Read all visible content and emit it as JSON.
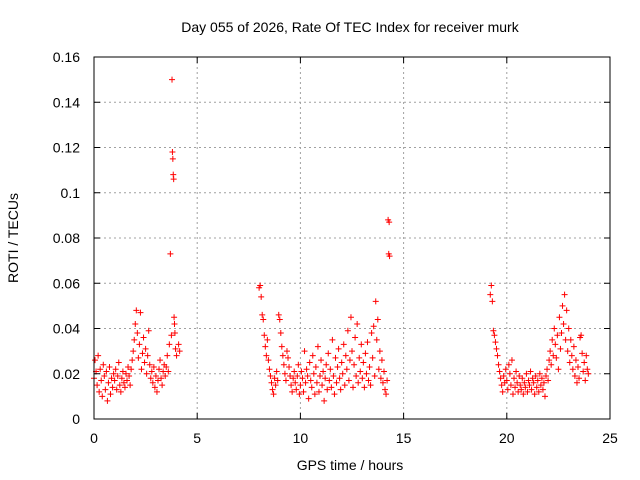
{
  "chart_data": {
    "type": "scatter",
    "title": "Day 055 of 2026, Rate Of TEC Index for receiver murk",
    "xlabel": "GPS time / hours",
    "ylabel": "ROTI / TECUs",
    "xlim": [
      0,
      25
    ],
    "ylim": [
      0,
      0.16
    ],
    "x_ticks": [
      0,
      5,
      10,
      15,
      20,
      25
    ],
    "x_tick_labels": [
      "0",
      "5",
      "10",
      "15",
      "20",
      "25"
    ],
    "y_ticks": [
      0,
      0.02,
      0.04,
      0.06,
      0.08,
      0.1,
      0.12,
      0.14,
      0.16
    ],
    "y_tick_labels": [
      "0",
      "0.02",
      "0.04",
      "0.06",
      "0.08",
      "0.1",
      "0.12",
      "0.14",
      "0.16"
    ],
    "grid": true,
    "marker": "plus",
    "color": "#ff0000",
    "series": [
      {
        "points": [
          [
            0.0,
            0.018
          ],
          [
            0.05,
            0.026
          ],
          [
            0.1,
            0.021
          ],
          [
            0.15,
            0.015
          ],
          [
            0.2,
            0.028
          ],
          [
            0.25,
            0.012
          ],
          [
            0.3,
            0.022
          ],
          [
            0.35,
            0.017
          ],
          [
            0.4,
            0.01
          ],
          [
            0.45,
            0.024
          ],
          [
            0.5,
            0.019
          ],
          [
            0.55,
            0.013
          ],
          [
            0.6,
            0.021
          ],
          [
            0.65,
            0.008
          ],
          [
            0.7,
            0.016
          ],
          [
            0.75,
            0.023
          ],
          [
            0.8,
            0.011
          ],
          [
            0.85,
            0.018
          ],
          [
            0.9,
            0.014
          ],
          [
            0.95,
            0.02
          ],
          [
            1.0,
            0.017
          ],
          [
            1.05,
            0.022
          ],
          [
            1.1,
            0.013
          ],
          [
            1.15,
            0.019
          ],
          [
            1.2,
            0.025
          ],
          [
            1.25,
            0.015
          ],
          [
            1.3,
            0.012
          ],
          [
            1.35,
            0.018
          ],
          [
            1.4,
            0.021
          ],
          [
            1.45,
            0.016
          ],
          [
            1.5,
            0.014
          ],
          [
            1.55,
            0.02
          ],
          [
            1.6,
            0.017
          ],
          [
            1.65,
            0.023
          ],
          [
            1.7,
            0.019
          ],
          [
            1.75,
            0.015
          ],
          [
            1.8,
            0.022
          ],
          [
            1.85,
            0.026
          ],
          [
            1.9,
            0.03
          ],
          [
            1.95,
            0.035
          ],
          [
            2.0,
            0.042
          ],
          [
            2.05,
            0.048
          ],
          [
            2.1,
            0.038
          ],
          [
            2.15,
            0.027
          ],
          [
            2.2,
            0.033
          ],
          [
            2.25,
            0.047
          ],
          [
            2.3,
            0.022
          ],
          [
            2.35,
            0.029
          ],
          [
            2.4,
            0.036
          ],
          [
            2.45,
            0.025
          ],
          [
            2.5,
            0.031
          ],
          [
            2.55,
            0.02
          ],
          [
            2.6,
            0.028
          ],
          [
            2.65,
            0.039
          ],
          [
            2.7,
            0.024
          ],
          [
            2.75,
            0.018
          ],
          [
            2.8,
            0.021
          ],
          [
            2.85,
            0.016
          ],
          [
            2.9,
            0.023
          ],
          [
            2.95,
            0.014
          ],
          [
            3.0,
            0.019
          ],
          [
            3.05,
            0.012
          ],
          [
            3.1,
            0.017
          ],
          [
            3.15,
            0.022
          ],
          [
            3.2,
            0.026
          ],
          [
            3.25,
            0.018
          ],
          [
            3.3,
            0.015
          ],
          [
            3.35,
            0.021
          ],
          [
            3.4,
            0.024
          ],
          [
            3.45,
            0.019
          ],
          [
            3.5,
            0.023
          ],
          [
            3.55,
            0.028
          ],
          [
            3.6,
            0.021
          ],
          [
            3.65,
            0.033
          ],
          [
            3.7,
            0.073
          ],
          [
            3.75,
            0.037
          ],
          [
            3.78,
            0.15
          ],
          [
            3.8,
            0.118
          ],
          [
            3.82,
            0.115
          ],
          [
            3.84,
            0.108
          ],
          [
            3.86,
            0.106
          ],
          [
            3.88,
            0.045
          ],
          [
            3.9,
            0.042
          ],
          [
            3.92,
            0.038
          ],
          [
            3.95,
            0.031
          ],
          [
            4.0,
            0.028
          ],
          [
            4.1,
            0.033
          ],
          [
            4.15,
            0.03
          ],
          [
            8.0,
            0.058
          ],
          [
            8.05,
            0.059
          ],
          [
            8.1,
            0.054
          ],
          [
            8.15,
            0.046
          ],
          [
            8.2,
            0.044
          ],
          [
            8.25,
            0.037
          ],
          [
            8.3,
            0.032
          ],
          [
            8.35,
            0.028
          ],
          [
            8.4,
            0.035
          ],
          [
            8.45,
            0.026
          ],
          [
            8.5,
            0.022
          ],
          [
            8.55,
            0.019
          ],
          [
            8.6,
            0.016
          ],
          [
            8.65,
            0.013
          ],
          [
            8.7,
            0.011
          ],
          [
            8.75,
            0.018
          ],
          [
            8.8,
            0.015
          ],
          [
            8.85,
            0.021
          ],
          [
            8.9,
            0.017
          ],
          [
            8.95,
            0.046
          ],
          [
            9.0,
            0.044
          ],
          [
            9.05,
            0.038
          ],
          [
            9.1,
            0.032
          ],
          [
            9.15,
            0.028
          ],
          [
            9.2,
            0.024
          ],
          [
            9.25,
            0.02
          ],
          [
            9.3,
            0.017
          ],
          [
            9.35,
            0.03
          ],
          [
            9.4,
            0.027
          ],
          [
            9.45,
            0.023
          ],
          [
            9.5,
            0.019
          ],
          [
            9.55,
            0.015
          ],
          [
            9.6,
            0.012
          ],
          [
            9.65,
            0.018
          ],
          [
            9.7,
            0.021
          ],
          [
            9.75,
            0.016
          ],
          [
            9.8,
            0.013
          ],
          [
            9.85,
            0.019
          ],
          [
            9.9,
            0.024
          ],
          [
            9.95,
            0.011
          ],
          [
            10.0,
            0.015
          ],
          [
            10.05,
            0.021
          ],
          [
            10.1,
            0.018
          ],
          [
            10.15,
            0.012
          ],
          [
            10.2,
            0.03
          ],
          [
            10.25,
            0.016
          ],
          [
            10.3,
            0.022
          ],
          [
            10.35,
            0.019
          ],
          [
            10.4,
            0.009
          ],
          [
            10.45,
            0.025
          ],
          [
            10.5,
            0.017
          ],
          [
            10.55,
            0.014
          ],
          [
            10.6,
            0.028
          ],
          [
            10.65,
            0.02
          ],
          [
            10.7,
            0.011
          ],
          [
            10.75,
            0.023
          ],
          [
            10.8,
            0.016
          ],
          [
            10.85,
            0.032
          ],
          [
            10.9,
            0.012
          ],
          [
            10.95,
            0.019
          ],
          [
            11.0,
            0.026
          ],
          [
            11.05,
            0.015
          ],
          [
            11.1,
            0.021
          ],
          [
            11.15,
            0.008
          ],
          [
            11.2,
            0.018
          ],
          [
            11.25,
            0.024
          ],
          [
            11.3,
            0.013
          ],
          [
            11.35,
            0.029
          ],
          [
            11.4,
            0.017
          ],
          [
            11.45,
            0.022
          ],
          [
            11.5,
            0.014
          ],
          [
            11.55,
            0.035
          ],
          [
            11.6,
            0.019
          ],
          [
            11.65,
            0.011
          ],
          [
            11.7,
            0.027
          ],
          [
            11.75,
            0.016
          ],
          [
            11.8,
            0.023
          ],
          [
            11.85,
            0.031
          ],
          [
            11.9,
            0.018
          ],
          [
            11.95,
            0.013
          ],
          [
            12.0,
            0.025
          ],
          [
            12.05,
            0.02
          ],
          [
            12.1,
            0.033
          ],
          [
            12.15,
            0.015
          ],
          [
            12.2,
            0.028
          ],
          [
            12.25,
            0.022
          ],
          [
            12.3,
            0.039
          ],
          [
            12.35,
            0.017
          ],
          [
            12.4,
            0.026
          ],
          [
            12.45,
            0.045
          ],
          [
            12.5,
            0.03
          ],
          [
            12.55,
            0.014
          ],
          [
            12.6,
            0.024
          ],
          [
            12.65,
            0.036
          ],
          [
            12.7,
            0.019
          ],
          [
            12.75,
            0.042
          ],
          [
            12.8,
            0.016
          ],
          [
            12.85,
            0.027
          ],
          [
            12.9,
            0.021
          ],
          [
            12.95,
            0.033
          ],
          [
            13.0,
            0.018
          ],
          [
            13.05,
            0.025
          ],
          [
            13.1,
            0.014
          ],
          [
            13.15,
            0.029
          ],
          [
            13.2,
            0.02
          ],
          [
            13.25,
            0.034
          ],
          [
            13.3,
            0.017
          ],
          [
            13.35,
            0.023
          ],
          [
            13.4,
            0.015
          ],
          [
            13.45,
            0.038
          ],
          [
            13.5,
            0.027
          ],
          [
            13.55,
            0.041
          ],
          [
            13.6,
            0.019
          ],
          [
            13.65,
            0.052
          ],
          [
            13.7,
            0.035
          ],
          [
            13.75,
            0.044
          ],
          [
            13.8,
            0.022
          ],
          [
            13.85,
            0.03
          ],
          [
            13.9,
            0.018
          ],
          [
            13.95,
            0.026
          ],
          [
            14.0,
            0.016
          ],
          [
            14.05,
            0.021
          ],
          [
            14.1,
            0.013
          ],
          [
            14.15,
            0.011
          ],
          [
            14.2,
            0.017
          ],
          [
            14.25,
            0.088
          ],
          [
            14.3,
            0.087
          ],
          [
            14.28,
            0.073
          ],
          [
            14.32,
            0.072
          ],
          [
            19.2,
            0.055
          ],
          [
            19.25,
            0.059
          ],
          [
            19.3,
            0.052
          ],
          [
            19.35,
            0.039
          ],
          [
            19.4,
            0.037
          ],
          [
            19.45,
            0.034
          ],
          [
            19.5,
            0.031
          ],
          [
            19.55,
            0.028
          ],
          [
            19.6,
            0.024
          ],
          [
            19.65,
            0.021
          ],
          [
            19.7,
            0.018
          ],
          [
            19.75,
            0.015
          ],
          [
            19.8,
            0.012
          ],
          [
            19.85,
            0.019
          ],
          [
            19.9,
            0.016
          ],
          [
            19.95,
            0.022
          ],
          [
            20.0,
            0.017
          ],
          [
            20.05,
            0.013
          ],
          [
            20.1,
            0.024
          ],
          [
            20.15,
            0.02
          ],
          [
            20.2,
            0.015
          ],
          [
            20.25,
            0.026
          ],
          [
            20.3,
            0.011
          ],
          [
            20.35,
            0.018
          ],
          [
            20.4,
            0.014
          ],
          [
            20.45,
            0.021
          ],
          [
            20.5,
            0.016
          ],
          [
            20.55,
            0.012
          ],
          [
            20.6,
            0.019
          ],
          [
            20.65,
            0.015
          ],
          [
            20.7,
            0.013
          ],
          [
            20.75,
            0.018
          ],
          [
            20.8,
            0.011
          ],
          [
            20.85,
            0.016
          ],
          [
            20.9,
            0.014
          ],
          [
            20.95,
            0.02
          ],
          [
            21.0,
            0.012
          ],
          [
            21.05,
            0.017
          ],
          [
            21.1,
            0.015
          ],
          [
            21.15,
            0.021
          ],
          [
            21.2,
            0.013
          ],
          [
            21.25,
            0.018
          ],
          [
            21.3,
            0.016
          ],
          [
            21.35,
            0.011
          ],
          [
            21.4,
            0.019
          ],
          [
            21.45,
            0.014
          ],
          [
            21.5,
            0.017
          ],
          [
            21.55,
            0.012
          ],
          [
            21.6,
            0.02
          ],
          [
            21.65,
            0.015
          ],
          [
            21.7,
            0.018
          ],
          [
            21.75,
            0.013
          ],
          [
            21.8,
            0.016
          ],
          [
            21.85,
            0.01
          ],
          [
            21.9,
            0.019
          ],
          [
            21.95,
            0.022
          ],
          [
            22.0,
            0.017
          ],
          [
            22.05,
            0.026
          ],
          [
            22.1,
            0.03
          ],
          [
            22.15,
            0.024
          ],
          [
            22.2,
            0.035
          ],
          [
            22.25,
            0.028
          ],
          [
            22.3,
            0.04
          ],
          [
            22.35,
            0.033
          ],
          [
            22.4,
            0.027
          ],
          [
            22.45,
            0.037
          ],
          [
            22.5,
            0.022
          ],
          [
            22.55,
            0.045
          ],
          [
            22.6,
            0.031
          ],
          [
            22.65,
            0.038
          ],
          [
            22.7,
            0.05
          ],
          [
            22.75,
            0.042
          ],
          [
            22.8,
            0.055
          ],
          [
            22.85,
            0.035
          ],
          [
            22.9,
            0.048
          ],
          [
            22.95,
            0.03
          ],
          [
            23.0,
            0.04
          ],
          [
            23.05,
            0.025
          ],
          [
            23.1,
            0.035
          ],
          [
            23.15,
            0.028
          ],
          [
            23.2,
            0.022
          ],
          [
            23.25,
            0.032
          ],
          [
            23.3,
            0.019
          ],
          [
            23.35,
            0.026
          ],
          [
            23.4,
            0.016
          ],
          [
            23.45,
            0.023
          ],
          [
            23.5,
            0.018
          ],
          [
            23.55,
            0.036
          ],
          [
            23.6,
            0.037
          ],
          [
            23.65,
            0.029
          ],
          [
            23.7,
            0.021
          ],
          [
            23.75,
            0.025
          ],
          [
            23.8,
            0.017
          ],
          [
            23.85,
            0.028
          ],
          [
            23.9,
            0.022
          ],
          [
            23.95,
            0.02
          ]
        ]
      }
    ]
  }
}
